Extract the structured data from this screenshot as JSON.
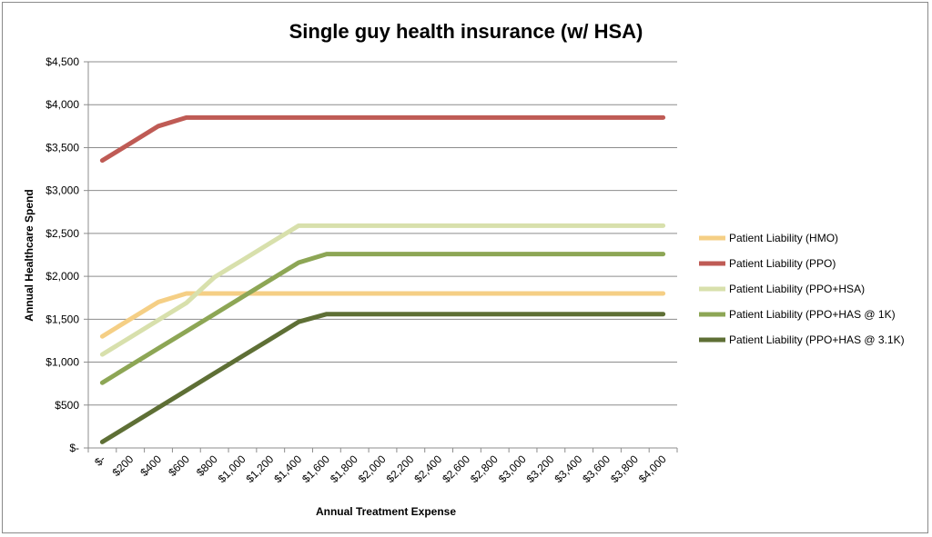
{
  "chart_data": {
    "type": "line",
    "title": "Single guy health insurance (w/ HSA)",
    "xlabel": "Annual Treatment Expense",
    "ylabel": "Annual Healthcare Spend",
    "categories": [
      "$-",
      "$200",
      "$400",
      "$600",
      "$800",
      "$1,000",
      "$1,200",
      "$1,400",
      "$1,600",
      "$1,800",
      "$2,000",
      "$2,200",
      "$2,400",
      "$2,600",
      "$2,800",
      "$3,000",
      "$3,200",
      "$3,400",
      "$3,600",
      "$3,800",
      "$4,000"
    ],
    "y_ticks": [
      "$-",
      "$500",
      "$1,000",
      "$1,500",
      "$2,000",
      "$2,500",
      "$3,000",
      "$3,500",
      "$4,000",
      "$4,500"
    ],
    "ylim": [
      0,
      4500
    ],
    "grid": true,
    "legend_position": "right",
    "series": [
      {
        "name": "Patient Liability (HMO)",
        "color": "#F5CF85",
        "values": [
          1300,
          1500,
          1700,
          1800,
          1800,
          1800,
          1800,
          1800,
          1800,
          1800,
          1800,
          1800,
          1800,
          1800,
          1800,
          1800,
          1800,
          1800,
          1800,
          1800,
          1800
        ]
      },
      {
        "name": "Patient Liability (PPO)",
        "color": "#BF5B55",
        "values": [
          3350,
          3550,
          3750,
          3850,
          3850,
          3850,
          3850,
          3850,
          3850,
          3850,
          3850,
          3850,
          3850,
          3850,
          3850,
          3850,
          3850,
          3850,
          3850,
          3850,
          3850
        ]
      },
      {
        "name": "Patient Liability (PPO+HSA)",
        "color": "#D8E0AC",
        "values": [
          1090,
          1290,
          1490,
          1690,
          1990,
          2190,
          2390,
          2590,
          2590,
          2590,
          2590,
          2590,
          2590,
          2590,
          2590,
          2590,
          2590,
          2590,
          2590,
          2590,
          2590
        ]
      },
      {
        "name": "Patient Liability (PPO+HAS @ 1K)",
        "color": "#8DA655",
        "values": [
          760,
          960,
          1160,
          1360,
          1560,
          1760,
          1960,
          2160,
          2260,
          2260,
          2260,
          2260,
          2260,
          2260,
          2260,
          2260,
          2260,
          2260,
          2260,
          2260,
          2260
        ]
      },
      {
        "name": "Patient Liability (PPO+HAS @ 3.1K)",
        "color": "#5E6F35",
        "values": [
          70,
          270,
          470,
          670,
          870,
          1070,
          1270,
          1470,
          1560,
          1560,
          1560,
          1560,
          1560,
          1560,
          1560,
          1560,
          1560,
          1560,
          1560,
          1560,
          1560
        ]
      }
    ]
  }
}
